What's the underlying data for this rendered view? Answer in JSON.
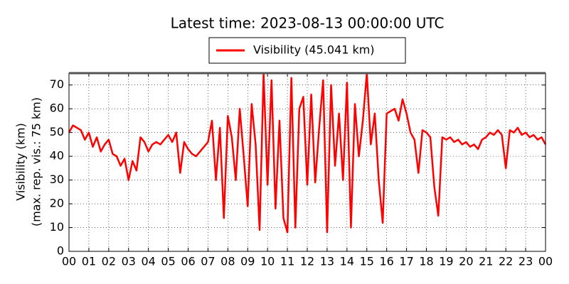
{
  "chart_data": {
    "type": "line",
    "title": "Latest time: 2023-08-13 00:00:00 UTC",
    "ylabel": [
      "Visibility (km)",
      "(max. rep. vis.: 75 km)"
    ],
    "x": [
      0,
      0.2,
      0.4,
      0.6,
      0.8,
      1,
      1.2,
      1.4,
      1.6,
      1.8,
      2,
      2.2,
      2.4,
      2.6,
      2.8,
      3,
      3.2,
      3.4,
      3.6,
      3.8,
      4,
      4.2,
      4.4,
      4.6,
      4.8,
      5,
      5.2,
      5.4,
      5.6,
      5.8,
      6,
      6.2,
      6.4,
      6.6,
      6.8,
      7,
      7.2,
      7.4,
      7.6,
      7.8,
      8,
      8.2,
      8.4,
      8.6,
      8.8,
      9,
      9.2,
      9.4,
      9.6,
      9.8,
      10,
      10.2,
      10.4,
      10.6,
      10.8,
      11,
      11.2,
      11.4,
      11.6,
      11.8,
      12,
      12.2,
      12.4,
      12.6,
      12.8,
      13,
      13.2,
      13.4,
      13.6,
      13.8,
      14,
      14.2,
      14.4,
      14.6,
      14.8,
      15,
      15.2,
      15.4,
      15.6,
      15.8,
      16,
      16.2,
      16.4,
      16.6,
      16.8,
      17,
      17.2,
      17.4,
      17.6,
      17.8,
      18,
      18.2,
      18.4,
      18.6,
      18.8,
      19,
      19.2,
      19.4,
      19.6,
      19.8,
      20,
      20.2,
      20.4,
      20.6,
      20.8,
      21,
      21.2,
      21.4,
      21.6,
      21.8,
      22,
      22.2,
      22.4,
      22.6,
      22.8,
      23,
      23.2,
      23.4,
      23.6,
      23.8,
      24
    ],
    "series": [
      {
        "name": "Visibility (45.041 km)",
        "color": "#ff0000",
        "values": [
          50,
          53,
          52,
          51,
          47,
          50,
          44,
          48,
          42,
          45,
          47,
          41,
          40,
          36,
          39,
          30,
          38,
          34,
          48,
          46,
          42,
          45,
          46,
          45,
          47,
          49,
          46,
          50,
          33,
          46,
          43,
          41,
          40,
          42,
          44,
          46,
          55,
          30,
          52,
          14,
          57,
          48,
          30,
          60,
          40,
          19,
          62,
          45,
          9,
          75,
          28,
          72,
          18,
          55,
          14,
          8,
          73,
          10,
          60,
          65,
          28,
          66,
          29,
          52,
          72,
          8,
          70,
          36,
          58,
          30,
          71,
          10,
          62,
          40,
          55,
          75,
          45,
          58,
          30,
          12,
          58,
          59,
          60,
          55,
          64,
          58,
          50,
          47,
          33,
          51,
          50,
          48,
          27,
          15,
          48,
          47,
          48,
          46,
          47,
          45,
          46,
          44,
          45,
          43,
          47,
          48,
          50,
          49,
          51,
          49,
          35,
          51,
          50,
          52,
          49,
          50,
          48,
          49,
          47,
          48,
          45
        ]
      }
    ],
    "xlim": [
      0,
      24
    ],
    "xticks": [
      {
        "value": 0,
        "label": "00"
      },
      {
        "value": 1,
        "label": "01"
      },
      {
        "value": 2,
        "label": "02"
      },
      {
        "value": 3,
        "label": "03"
      },
      {
        "value": 4,
        "label": "04"
      },
      {
        "value": 5,
        "label": "05"
      },
      {
        "value": 6,
        "label": "06"
      },
      {
        "value": 7,
        "label": "07"
      },
      {
        "value": 8,
        "label": "08"
      },
      {
        "value": 9,
        "label": "09"
      },
      10,
      11,
      12,
      13,
      14,
      15,
      16,
      17,
      18,
      19,
      20,
      21,
      22,
      23,
      {
        "value": 24,
        "label": "00"
      }
    ],
    "ylim": [
      0,
      75
    ],
    "yticks": [
      0,
      10,
      20,
      30,
      40,
      50,
      60,
      70
    ],
    "grid": true,
    "legend": "top"
  }
}
